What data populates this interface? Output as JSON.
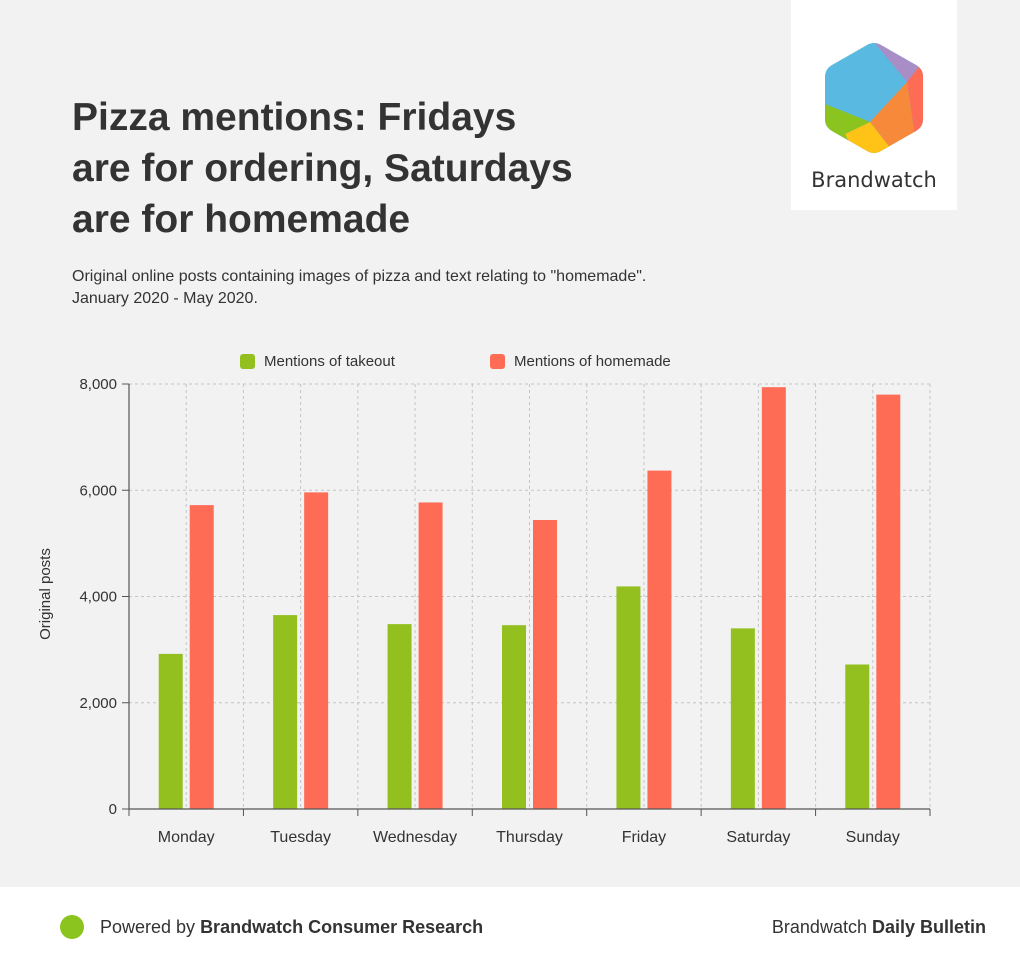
{
  "header": {
    "title_lines": [
      "Pizza mentions: Fridays",
      "are for ordering, Saturdays",
      "are for homemade"
    ],
    "subtitle_lines": [
      "Original online posts containing images of pizza and text relating to \"homemade\".",
      "January 2020 - May 2020."
    ]
  },
  "brand": {
    "logo_word": "Brandwatch"
  },
  "footer": {
    "powered_prefix": "Powered by ",
    "powered_name": "Brandwatch Consumer Research",
    "bulletin_prefix": "Brandwatch ",
    "bulletin_name": "Daily Bulletin",
    "dot_color": "#8bc41f"
  },
  "chart_data": {
    "type": "bar",
    "categories": [
      "Monday",
      "Tuesday",
      "Wednesday",
      "Thursday",
      "Friday",
      "Saturday",
      "Sunday"
    ],
    "series": [
      {
        "name": "Mentions of takeout",
        "color": "#93c01f",
        "values": [
          2920,
          3650,
          3480,
          3460,
          4190,
          3400,
          2720
        ]
      },
      {
        "name": "Mentions of homemade",
        "color": "#ff6c56",
        "values": [
          5720,
          5960,
          5770,
          5440,
          6370,
          7940,
          7800
        ]
      }
    ],
    "ylabel": "Original posts",
    "xlabel": "",
    "ylim": [
      0,
      8000
    ],
    "yticks": [
      0,
      2000,
      4000,
      6000,
      8000
    ],
    "ytick_labels": [
      "0",
      "2,000",
      "4,000",
      "6,000",
      "8,000"
    ],
    "grid": true,
    "legend": "top-center"
  }
}
